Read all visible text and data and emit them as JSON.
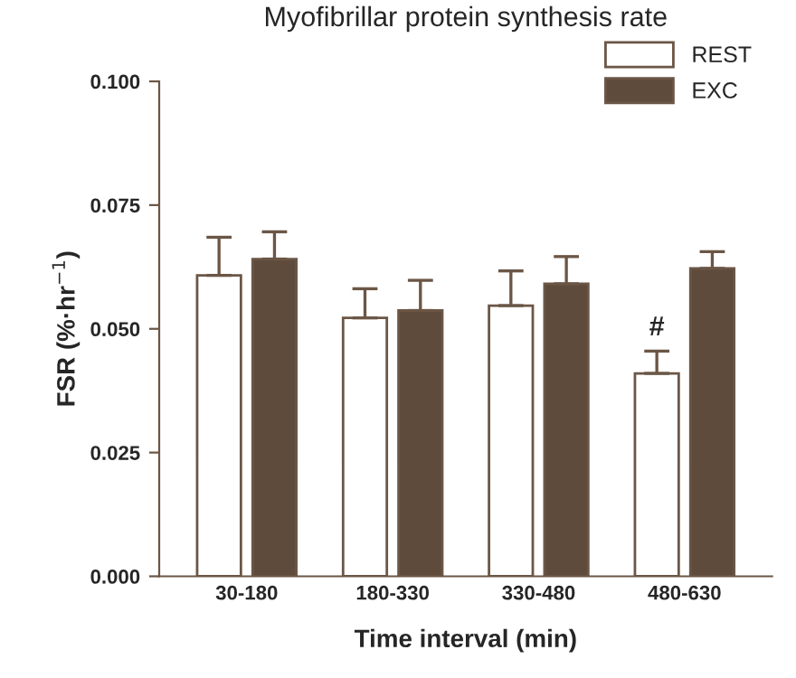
{
  "chart_data": {
    "type": "bar",
    "title": "Myofibrillar protein synthesis rate",
    "xlabel": "Time interval (min)",
    "ylabel": "FSR (%·hr$^{−1}$)",
    "categories": [
      "30-180",
      "180-330",
      "330-480",
      "480-630"
    ],
    "series": [
      {
        "name": "REST",
        "color": "#ffffff",
        "values": [
          0.0608,
          0.0522,
          0.0547,
          0.041
        ],
        "errors": [
          [
            0.0608,
            0.0685
          ],
          [
            0.0522,
            0.0581
          ],
          [
            0.0547,
            0.0617
          ],
          [
            0.041,
            0.0455
          ]
        ]
      },
      {
        "name": "EXC",
        "color": "#5e4b3c",
        "values": [
          0.0641,
          0.0537,
          0.0591,
          0.0622
        ],
        "errors": [
          [
            0.0641,
            0.0696
          ],
          [
            0.0537,
            0.0598
          ],
          [
            0.0591,
            0.0646
          ],
          [
            0.0622,
            0.0656
          ]
        ]
      }
    ],
    "ylim": [
      0,
      0.1
    ],
    "yticks": [
      {
        "value": 0,
        "label": "0.000"
      },
      {
        "value": 0.025,
        "label": "0.025"
      },
      {
        "value": 0.05,
        "label": "0.050"
      },
      {
        "value": 0.075,
        "label": "0.075"
      },
      {
        "value": 0.1,
        "label": "0.100"
      }
    ],
    "annotations": [
      {
        "text": "#",
        "x": "480-630",
        "y": 0.0475
      }
    ],
    "legend": "top right",
    "grid": false
  }
}
